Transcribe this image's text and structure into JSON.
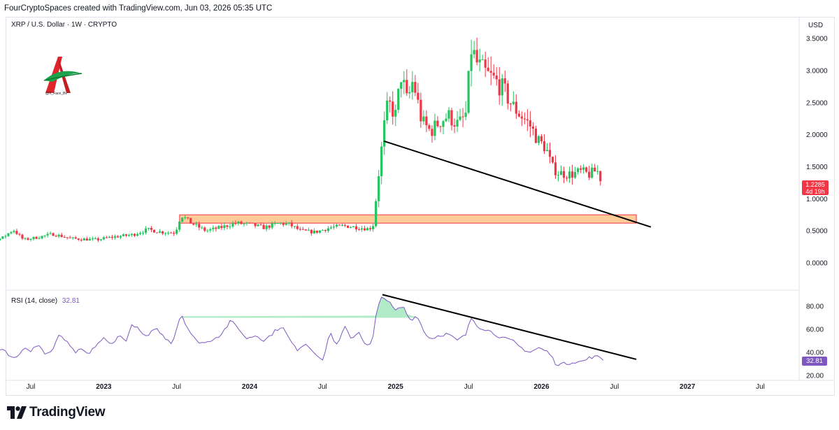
{
  "header": {
    "attribution": "FourCryptoSpaces created with TradingView.com, Jun 03, 2026 05:35 UTC"
  },
  "legend": {
    "symbol": "XRP / U.S. Dollar · 1W · CRYPTO"
  },
  "currency": "USD",
  "price_tag": {
    "price": "1.2285",
    "countdown": "4d 19h"
  },
  "rsi": {
    "label": "RSI (14, close)",
    "value": "32.81"
  },
  "watermark": {
    "handle": "@X_Face_Bv"
  },
  "footer": {
    "brand": "TradingView"
  },
  "colors": {
    "up": "#22c55e",
    "down": "#f23645",
    "rsi_line": "#7e57c2",
    "zone_fill": "#ffcc99",
    "zone_border": "#f23645",
    "trendline": "#000000"
  },
  "chart_data": [
    {
      "type": "candlestick",
      "title": "XRP / U.S. Dollar · 1W · CRYPTO",
      "ylabel": "USD",
      "ylim": [
        0,
        3.7
      ],
      "y_ticks": [
        "3.5000",
        "3.0000",
        "2.5000",
        "2.0000",
        "1.5000",
        "1.0000",
        "0.5000",
        "0.0000"
      ],
      "y_tick_values": [
        3.5,
        3.0,
        2.5,
        2.0,
        1.5,
        1.0,
        0.5,
        0.0
      ],
      "x_ticks": [
        "Jul",
        "2023",
        "Jul",
        "2024",
        "Jul",
        "2025",
        "Jul",
        "2026",
        "Jul",
        "2027",
        "Jul"
      ],
      "x_tick_months": [
        2022.5,
        2023.0,
        2023.5,
        2024.0,
        2024.5,
        2025.0,
        2025.5,
        2026.0,
        2026.5,
        2027.0,
        2027.5
      ],
      "anchors": [
        [
          2022.0,
          0.6
        ],
        [
          2022.08,
          0.4
        ],
        [
          2022.17,
          0.35
        ],
        [
          2022.3,
          0.38
        ],
        [
          2022.38,
          0.52
        ],
        [
          2022.45,
          0.36
        ],
        [
          2022.55,
          0.4
        ],
        [
          2022.65,
          0.45
        ],
        [
          2022.78,
          0.38
        ],
        [
          2022.95,
          0.36
        ],
        [
          2023.05,
          0.4
        ],
        [
          2023.2,
          0.44
        ],
        [
          2023.3,
          0.52
        ],
        [
          2023.4,
          0.48
        ],
        [
          2023.49,
          0.47
        ],
        [
          2023.53,
          0.75
        ],
        [
          2023.6,
          0.62
        ],
        [
          2023.7,
          0.5
        ],
        [
          2023.8,
          0.55
        ],
        [
          2023.9,
          0.62
        ],
        [
          2024.0,
          0.6
        ],
        [
          2024.1,
          0.55
        ],
        [
          2024.2,
          0.62
        ],
        [
          2024.27,
          0.6
        ],
        [
          2024.35,
          0.5
        ],
        [
          2024.45,
          0.48
        ],
        [
          2024.55,
          0.55
        ],
        [
          2024.65,
          0.58
        ],
        [
          2024.75,
          0.55
        ],
        [
          2024.82,
          0.53
        ],
        [
          2024.85,
          0.6
        ],
        [
          2024.87,
          1.1
        ],
        [
          2024.89,
          1.5
        ],
        [
          2024.92,
          2.1
        ],
        [
          2024.95,
          2.5
        ],
        [
          2025.0,
          2.3
        ],
        [
          2025.04,
          2.95
        ],
        [
          2025.08,
          2.5
        ],
        [
          2025.12,
          2.85
        ],
        [
          2025.18,
          2.2
        ],
        [
          2025.24,
          2.05
        ],
        [
          2025.3,
          2.2
        ],
        [
          2025.36,
          2.3
        ],
        [
          2025.43,
          2.15
        ],
        [
          2025.48,
          2.3
        ],
        [
          2025.52,
          3.35
        ],
        [
          2025.56,
          3.1
        ],
        [
          2025.62,
          2.95
        ],
        [
          2025.68,
          2.85
        ],
        [
          2025.74,
          2.7
        ],
        [
          2025.8,
          2.45
        ],
        [
          2025.86,
          2.3
        ],
        [
          2025.92,
          2.15
        ],
        [
          2025.98,
          1.9
        ],
        [
          2026.03,
          1.8
        ],
        [
          2026.07,
          1.5
        ],
        [
          2026.12,
          1.4
        ],
        [
          2026.2,
          1.38
        ],
        [
          2026.27,
          1.42
        ],
        [
          2026.33,
          1.38
        ],
        [
          2026.38,
          1.45
        ],
        [
          2026.42,
          1.23
        ]
      ],
      "support_zone": {
        "from_x": 2023.52,
        "to_x": 2026.65,
        "from_y": 0.62,
        "to_y": 0.75
      },
      "trendline": {
        "from": [
          2024.92,
          1.9
        ],
        "to": [
          2026.75,
          0.56
        ]
      }
    },
    {
      "type": "line",
      "title": "RSI (14, close)",
      "ylim": [
        15,
        95
      ],
      "y_ticks": [
        "80.00",
        "60.00",
        "40.00",
        "20.00"
      ],
      "y_tick_values": [
        80,
        60,
        40,
        20
      ],
      "anchors": [
        [
          2022.0,
          30
        ],
        [
          2022.05,
          28
        ],
        [
          2022.1,
          32
        ],
        [
          2022.15,
          33
        ],
        [
          2022.2,
          40
        ],
        [
          2022.25,
          38
        ],
        [
          2022.3,
          45
        ],
        [
          2022.35,
          38
        ],
        [
          2022.4,
          35
        ],
        [
          2022.45,
          44
        ],
        [
          2022.5,
          40
        ],
        [
          2022.55,
          48
        ],
        [
          2022.6,
          38
        ],
        [
          2022.65,
          42
        ],
        [
          2022.7,
          56
        ],
        [
          2022.75,
          48
        ],
        [
          2022.8,
          40
        ],
        [
          2022.85,
          42
        ],
        [
          2022.9,
          38
        ],
        [
          2022.95,
          47
        ],
        [
          2023.0,
          52
        ],
        [
          2023.05,
          46
        ],
        [
          2023.1,
          55
        ],
        [
          2023.15,
          50
        ],
        [
          2023.2,
          65
        ],
        [
          2023.25,
          58
        ],
        [
          2023.3,
          52
        ],
        [
          2023.35,
          62
        ],
        [
          2023.4,
          55
        ],
        [
          2023.47,
          48
        ],
        [
          2023.53,
          74
        ],
        [
          2023.58,
          60
        ],
        [
          2023.63,
          50
        ],
        [
          2023.7,
          48
        ],
        [
          2023.75,
          52
        ],
        [
          2023.8,
          55
        ],
        [
          2023.87,
          67
        ],
        [
          2023.92,
          62
        ],
        [
          2023.97,
          52
        ],
        [
          2024.05,
          55
        ],
        [
          2024.1,
          50
        ],
        [
          2024.17,
          58
        ],
        [
          2024.22,
          63
        ],
        [
          2024.27,
          52
        ],
        [
          2024.32,
          42
        ],
        [
          2024.38,
          48
        ],
        [
          2024.45,
          40
        ],
        [
          2024.5,
          32
        ],
        [
          2024.55,
          58
        ],
        [
          2024.6,
          45
        ],
        [
          2024.65,
          62
        ],
        [
          2024.7,
          52
        ],
        [
          2024.75,
          58
        ],
        [
          2024.8,
          45
        ],
        [
          2024.84,
          48
        ],
        [
          2024.87,
          75
        ],
        [
          2024.91,
          90
        ],
        [
          2024.95,
          84
        ],
        [
          2025.0,
          76
        ],
        [
          2025.05,
          80
        ],
        [
          2025.1,
          68
        ],
        [
          2025.15,
          72
        ],
        [
          2025.2,
          56
        ],
        [
          2025.25,
          52
        ],
        [
          2025.3,
          55
        ],
        [
          2025.36,
          56
        ],
        [
          2025.42,
          50
        ],
        [
          2025.48,
          55
        ],
        [
          2025.52,
          70
        ],
        [
          2025.57,
          62
        ],
        [
          2025.62,
          60
        ],
        [
          2025.68,
          56
        ],
        [
          2025.74,
          52
        ],
        [
          2025.8,
          50
        ],
        [
          2025.86,
          44
        ],
        [
          2025.92,
          40
        ],
        [
          2025.98,
          44
        ],
        [
          2026.05,
          40
        ],
        [
          2026.1,
          30
        ],
        [
          2026.16,
          30
        ],
        [
          2026.22,
          32
        ],
        [
          2026.28,
          32
        ],
        [
          2026.34,
          36
        ],
        [
          2026.4,
          36
        ],
        [
          2026.43,
          33
        ]
      ],
      "overbought_threshold": 70,
      "trendline": {
        "from": [
          2024.91,
          90
        ],
        "to": [
          2026.65,
          34
        ]
      }
    }
  ]
}
